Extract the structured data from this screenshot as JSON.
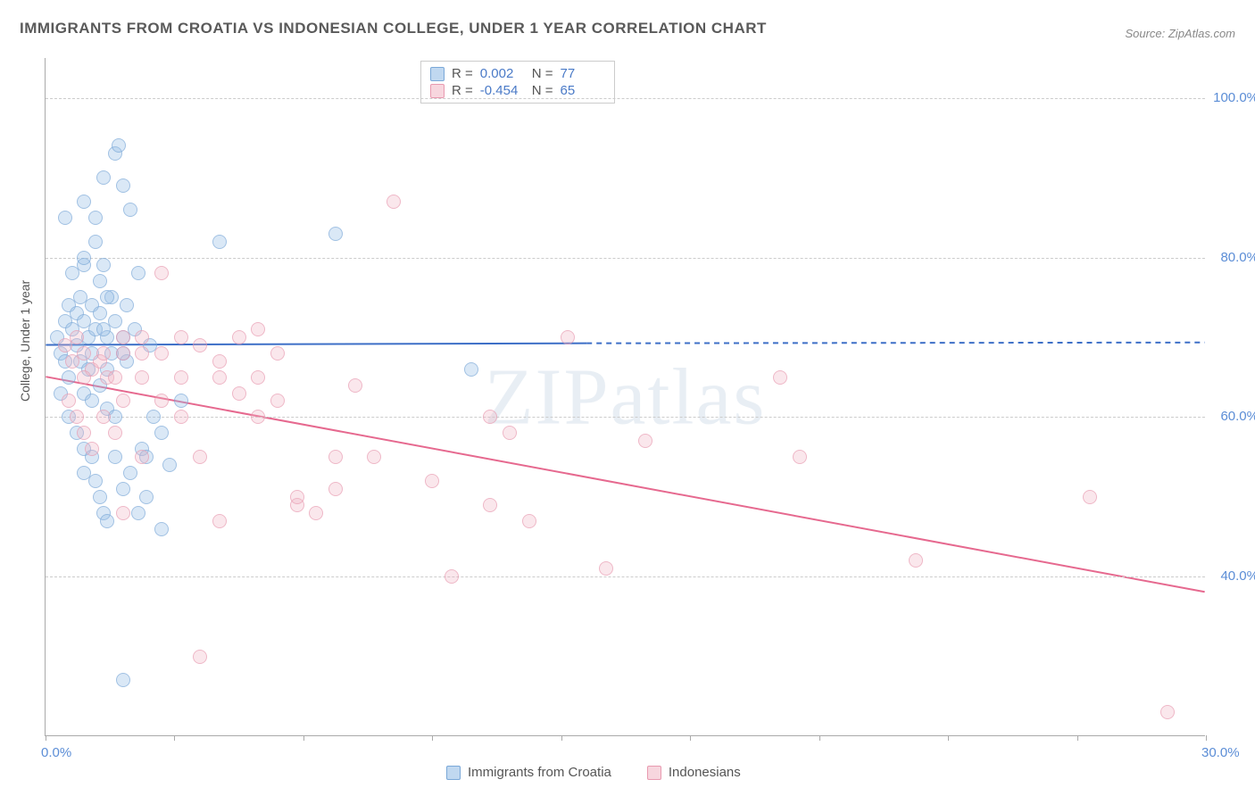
{
  "title": "IMMIGRANTS FROM CROATIA VS INDONESIAN COLLEGE, UNDER 1 YEAR CORRELATION CHART",
  "source": "Source: ZipAtlas.com",
  "ylabel": "College, Under 1 year",
  "watermark": "ZIPatlas",
  "chart": {
    "type": "scatter",
    "xlim": [
      0,
      30
    ],
    "ylim": [
      20,
      105
    ],
    "x_ticks": [
      0,
      3.33,
      6.67,
      10,
      13.33,
      16.67,
      20,
      23.33,
      26.67,
      30
    ],
    "x_tick_labels": {
      "0": "0.0%",
      "30": "30.0%"
    },
    "y_gridlines": [
      40,
      60,
      80,
      100
    ],
    "y_tick_labels": {
      "40": "40.0%",
      "60": "60.0%",
      "80": "80.0%",
      "100": "100.0%"
    },
    "background_color": "#ffffff",
    "grid_color": "#cccccc",
    "axis_color": "#aaaaaa",
    "axis_label_color": "#5b8dd6",
    "marker_radius": 8,
    "series": [
      {
        "name": "Immigrants from Croatia",
        "color_fill": "rgba(150,190,230,0.5)",
        "color_stroke": "#7aa8d8",
        "class": "blue",
        "R": "0.002",
        "N": "77",
        "trend": {
          "x1": 0,
          "y1": 69,
          "x2_solid": 14,
          "y2_solid": 69.2,
          "x2": 30,
          "y2": 69.3,
          "stroke": "#3d6fc7",
          "width": 2
        },
        "points": [
          [
            0.3,
            70
          ],
          [
            0.4,
            68
          ],
          [
            0.5,
            72
          ],
          [
            0.5,
            67
          ],
          [
            0.6,
            74
          ],
          [
            0.6,
            65
          ],
          [
            0.7,
            71
          ],
          [
            0.7,
            78
          ],
          [
            0.8,
            69
          ],
          [
            0.8,
            73
          ],
          [
            0.9,
            67
          ],
          [
            0.9,
            75
          ],
          [
            1.0,
            72
          ],
          [
            1.0,
            79
          ],
          [
            1.0,
            80
          ],
          [
            1.1,
            70
          ],
          [
            1.1,
            66
          ],
          [
            1.2,
            68
          ],
          [
            1.2,
            74
          ],
          [
            1.3,
            71
          ],
          [
            1.3,
            82
          ],
          [
            1.4,
            77
          ],
          [
            1.4,
            73
          ],
          [
            1.5,
            79
          ],
          [
            1.5,
            90
          ],
          [
            1.6,
            70
          ],
          [
            1.6,
            66
          ],
          [
            1.7,
            68
          ],
          [
            1.7,
            75
          ],
          [
            1.8,
            72
          ],
          [
            1.8,
            93
          ],
          [
            1.9,
            94
          ],
          [
            2.0,
            89
          ],
          [
            2.0,
            70
          ],
          [
            2.1,
            67
          ],
          [
            2.1,
            74
          ],
          [
            2.2,
            86
          ],
          [
            2.3,
            71
          ],
          [
            2.4,
            78
          ],
          [
            2.5,
            56
          ],
          [
            2.6,
            55
          ],
          [
            2.7,
            69
          ],
          [
            2.8,
            60
          ],
          [
            3.0,
            58
          ],
          [
            3.2,
            54
          ],
          [
            3.5,
            62
          ],
          [
            0.6,
            60
          ],
          [
            0.8,
            58
          ],
          [
            1.0,
            56
          ],
          [
            1.0,
            53
          ],
          [
            1.2,
            55
          ],
          [
            1.3,
            52
          ],
          [
            1.4,
            50
          ],
          [
            1.5,
            48
          ],
          [
            1.6,
            47
          ],
          [
            1.8,
            55
          ],
          [
            2.0,
            51
          ],
          [
            2.2,
            53
          ],
          [
            2.4,
            48
          ],
          [
            2.6,
            50
          ],
          [
            1.0,
            63
          ],
          [
            1.2,
            62
          ],
          [
            1.4,
            64
          ],
          [
            1.6,
            61
          ],
          [
            1.8,
            60
          ],
          [
            2.0,
            68
          ],
          [
            2.0,
            27
          ],
          [
            4.5,
            82
          ],
          [
            7.5,
            83
          ],
          [
            3.0,
            46
          ],
          [
            1.5,
            71
          ],
          [
            11.0,
            66
          ],
          [
            0.5,
            85
          ],
          [
            1.0,
            87
          ],
          [
            1.3,
            85
          ],
          [
            1.6,
            75
          ],
          [
            0.4,
            63
          ]
        ]
      },
      {
        "name": "Indonesians",
        "color_fill": "rgba(240,180,195,0.45)",
        "color_stroke": "#e89ab0",
        "class": "pink",
        "R": "-0.454",
        "N": "65",
        "trend": {
          "x1": 0,
          "y1": 65,
          "x2_solid": 30,
          "y2_solid": 38,
          "x2": 30,
          "y2": 38,
          "stroke": "#e6698f",
          "width": 2
        },
        "points": [
          [
            0.5,
            69
          ],
          [
            0.7,
            67
          ],
          [
            0.8,
            70
          ],
          [
            1.0,
            68
          ],
          [
            1.2,
            66
          ],
          [
            1.4,
            67
          ],
          [
            1.6,
            65
          ],
          [
            1.8,
            65
          ],
          [
            2.0,
            70
          ],
          [
            2.5,
            68
          ],
          [
            3.0,
            78
          ],
          [
            3.5,
            70
          ],
          [
            4.0,
            69
          ],
          [
            4.5,
            67
          ],
          [
            5.0,
            63
          ],
          [
            5.5,
            60
          ],
          [
            5.5,
            71
          ],
          [
            6.0,
            62
          ],
          [
            6.5,
            49
          ],
          [
            6.5,
            50
          ],
          [
            7.0,
            48
          ],
          [
            7.5,
            51
          ],
          [
            7.5,
            55
          ],
          [
            8.0,
            64
          ],
          [
            8.5,
            55
          ],
          [
            9.0,
            87
          ],
          [
            10.0,
            52
          ],
          [
            10.5,
            40
          ],
          [
            11.5,
            49
          ],
          [
            11.5,
            60
          ],
          [
            12.0,
            58
          ],
          [
            12.5,
            47
          ],
          [
            13.5,
            70
          ],
          [
            14.5,
            41
          ],
          [
            15.5,
            57
          ],
          [
            19.0,
            65
          ],
          [
            19.5,
            55
          ],
          [
            22.5,
            42
          ],
          [
            27.0,
            50
          ],
          [
            29.0,
            23
          ],
          [
            0.6,
            62
          ],
          [
            0.8,
            60
          ],
          [
            1.0,
            58
          ],
          [
            1.2,
            56
          ],
          [
            1.5,
            60
          ],
          [
            1.8,
            58
          ],
          [
            2.0,
            48
          ],
          [
            2.5,
            55
          ],
          [
            3.0,
            62
          ],
          [
            3.5,
            60
          ],
          [
            4.0,
            55
          ],
          [
            4.0,
            30
          ],
          [
            4.5,
            47
          ],
          [
            4.5,
            65
          ],
          [
            5.0,
            70
          ],
          [
            5.5,
            65
          ],
          [
            6.0,
            68
          ],
          [
            2.0,
            62
          ],
          [
            2.5,
            65
          ],
          [
            3.0,
            68
          ],
          [
            3.5,
            65
          ],
          [
            1.0,
            65
          ],
          [
            1.5,
            68
          ],
          [
            2.0,
            68
          ],
          [
            2.5,
            70
          ]
        ]
      }
    ]
  },
  "bottom_legend": [
    {
      "swatch": "blue",
      "label": "Immigrants from Croatia"
    },
    {
      "swatch": "pink",
      "label": "Indonesians"
    }
  ]
}
